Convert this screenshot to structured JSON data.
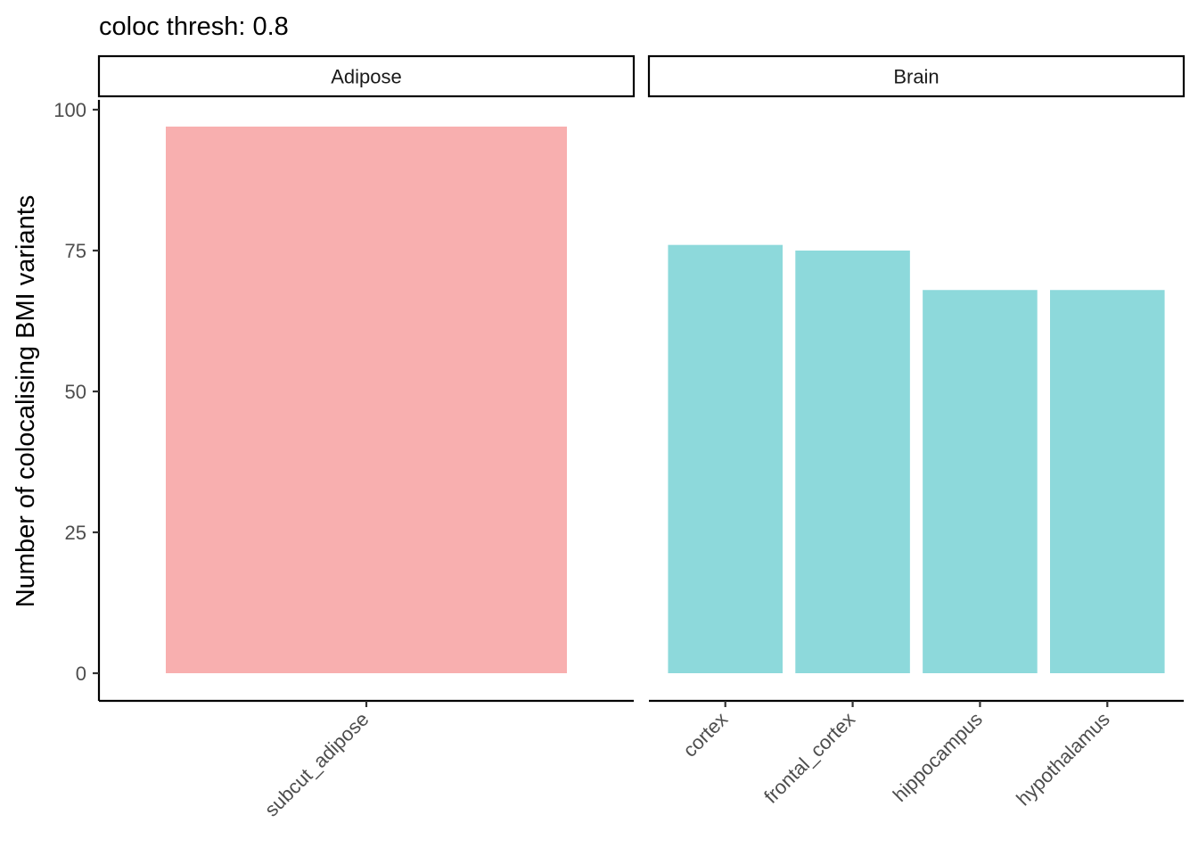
{
  "chart_data": {
    "type": "bar",
    "title": "coloc thresh: 0.8",
    "ylabel": "Number of colocalising BMI variants",
    "xlabel": "",
    "ylim": [
      0,
      100
    ],
    "yticks": [
      0,
      25,
      50,
      75,
      100
    ],
    "grid": false,
    "legend": "none",
    "facets": [
      {
        "name": "Adipose",
        "color": "#F8AFAF",
        "categories": [
          "subcut_adipose"
        ],
        "values": [
          97
        ]
      },
      {
        "name": "Brain",
        "color": "#8DD9DB",
        "categories": [
          "cortex",
          "frontal_cortex",
          "hippocampus",
          "hypothalamus"
        ],
        "values": [
          76,
          75,
          68,
          68
        ]
      }
    ]
  }
}
